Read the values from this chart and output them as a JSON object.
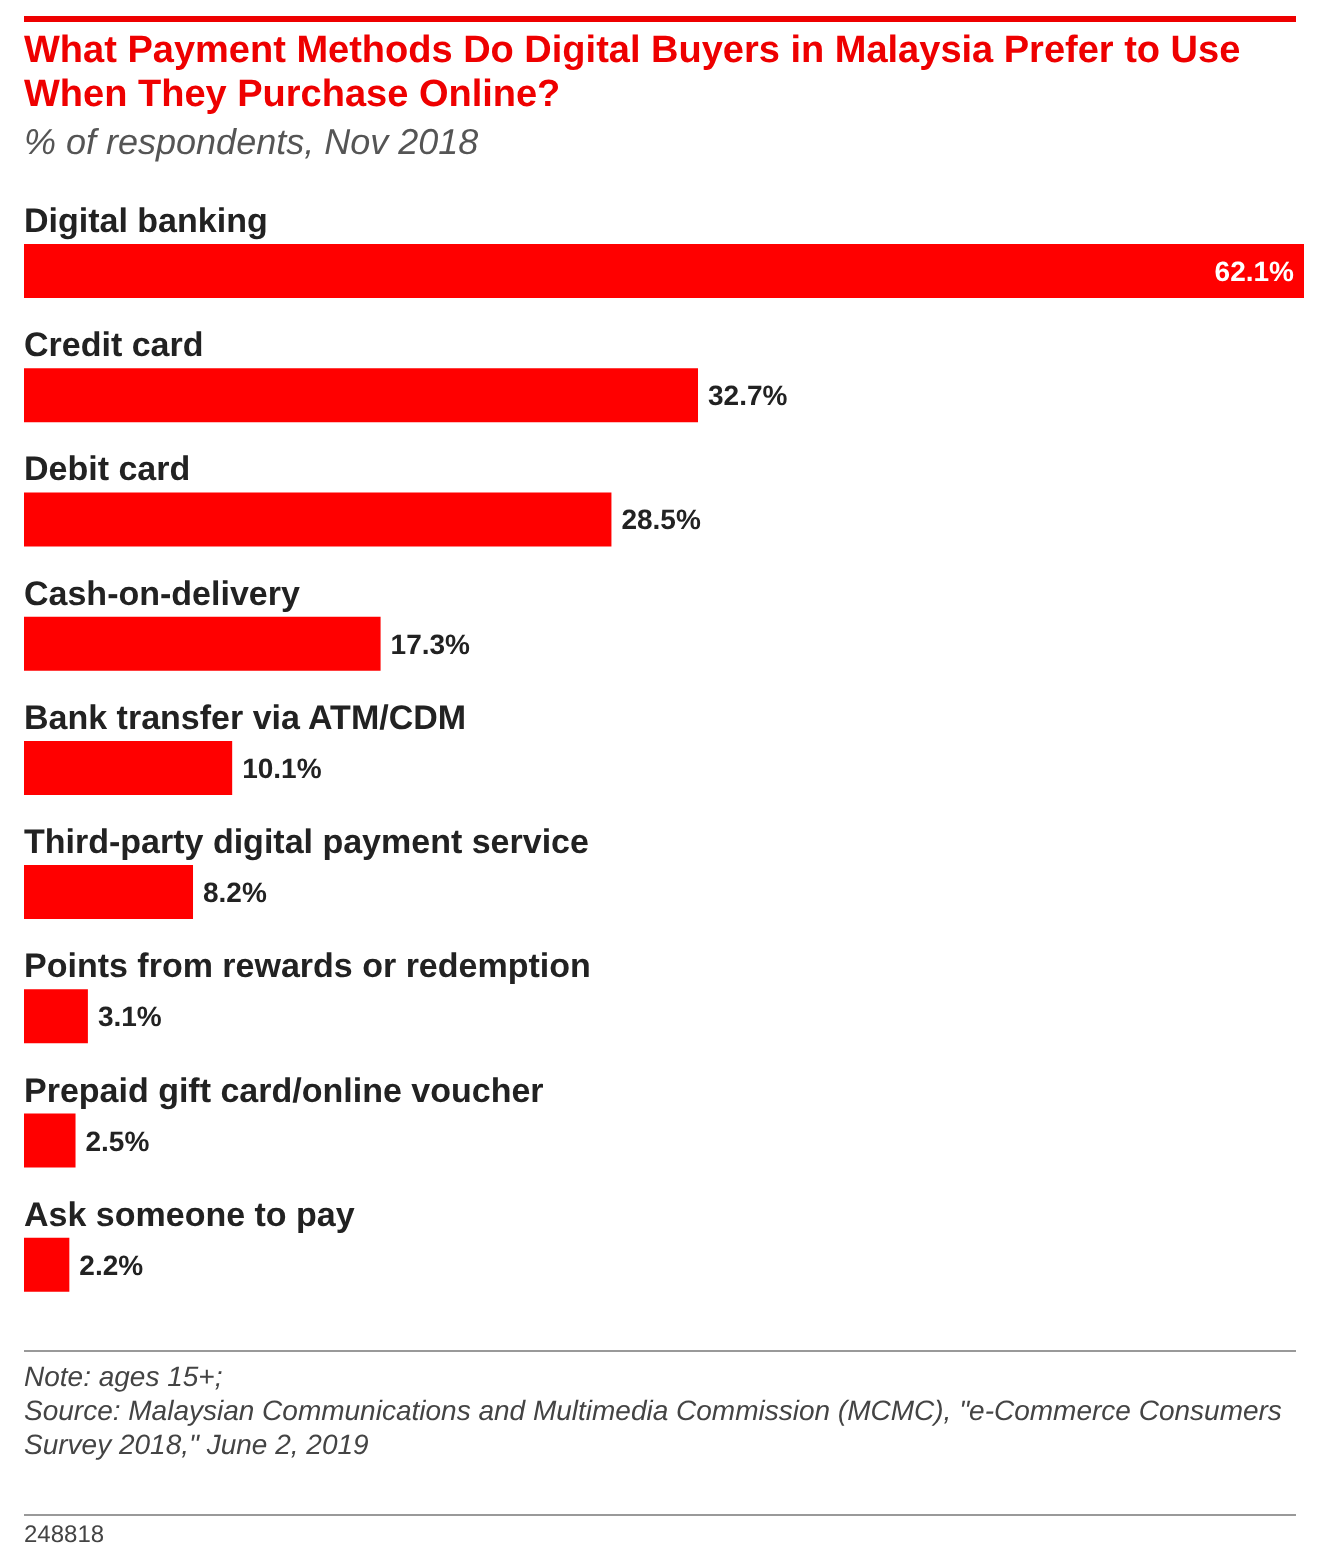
{
  "chart_data": {
    "type": "bar",
    "orientation": "horizontal",
    "title": "What Payment Methods Do Digital Buyers in Malaysia Prefer to Use When They Purchase Online?",
    "subtitle": "% of respondents, Nov 2018",
    "categories": [
      "Digital banking",
      "Credit card",
      "Debit card",
      "Cash-on-delivery",
      "Bank transfer via ATM/CDM",
      "Third-party digital payment service",
      "Points from rewards or redemption",
      "Prepaid gift card/online voucher",
      "Ask someone to pay"
    ],
    "values": [
      62.1,
      32.7,
      28.5,
      17.3,
      10.1,
      8.2,
      3.1,
      2.5,
      2.2
    ],
    "value_labels": [
      "62.1%",
      "32.7%",
      "28.5%",
      "17.3%",
      "10.1%",
      "8.2%",
      "3.1%",
      "2.5%",
      "2.2%"
    ],
    "color": "#ff0000",
    "annotations": [
      "Note: ages 15+;",
      "Source: Malaysian Communications and Multimedia Commission (MCMC), \"e-Commerce Consumers Survey 2018,\" June 2, 2019",
      "248818"
    ]
  }
}
